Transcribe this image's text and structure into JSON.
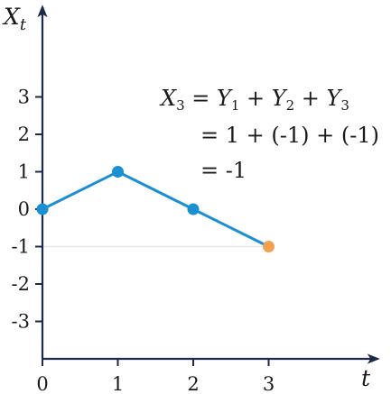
{
  "chart_data": {
    "type": "line",
    "x": [
      0,
      1,
      2,
      3
    ],
    "series": [
      {
        "values": [
          0,
          1,
          0,
          -1
        ],
        "color": "#1a8fd1"
      }
    ],
    "highlight_point": {
      "x": 3,
      "y": -1,
      "color": "#f4a14f"
    },
    "reference_line": {
      "y": -1,
      "color": "#e6e6e6"
    },
    "xticks": [
      "0",
      "1",
      "2",
      "3"
    ],
    "yticks": [
      "3",
      "2",
      "1",
      "0",
      "-1",
      "-2",
      "-3"
    ],
    "highlight_tick": "-1",
    "highlight_tick_color": "#f4a14f",
    "xlabel": "t",
    "ylabel": {
      "base": "X",
      "sub": "t"
    },
    "xlim": [
      0,
      4.3
    ],
    "ylim": [
      -4,
      5.3
    ],
    "annotation": {
      "line1": {
        "lhs": "X",
        "lhs_sub": "3",
        "eq": " = ",
        "terms": [
          {
            "base": "Y",
            "sub": "1"
          },
          {
            "base": "Y",
            "sub": "2"
          },
          {
            "base": "Y",
            "sub": "3"
          }
        ],
        "plus": " + "
      },
      "line2": "= 1 + (-1) + (-1)",
      "line3": "= -1"
    },
    "grid": false,
    "axis_color": "#1c2a4a"
  }
}
